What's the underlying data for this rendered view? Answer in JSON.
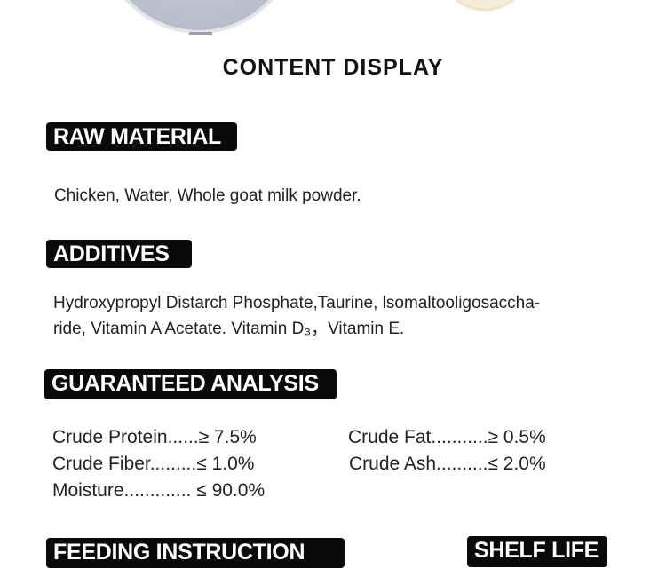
{
  "title": "CONTENT DISPLAY",
  "raw_material": {
    "label": "RAW MATERIAL",
    "text": "Chicken, Water,  Whole goat milk powder."
  },
  "additives": {
    "label": "ADDITIVES",
    "line1": "Hydroxypropyl Distarch Phosphate,Taurine, lsomaltooligosaccha-",
    "line2": "ride, Vitamin A Acetate. Vitamin D₃，Vitamin E."
  },
  "analysis": {
    "label": "GUARANTEED ANALYSIS",
    "items": [
      {
        "text": "Crude Protein......≥ 7.5%"
      },
      {
        "text": "Crude Fat...........≥ 0.5%"
      },
      {
        "text": "Crude Fiber.........≤ 1.0%"
      },
      {
        "text": "Crude Ash..........≤ 2.0%"
      },
      {
        "text": "Moisture............. ≤ 90.0%"
      }
    ]
  },
  "feeding": {
    "label": "FEEDING INSTRUCTION"
  },
  "shelf_life": {
    "label": "SHELF LIFE"
  }
}
